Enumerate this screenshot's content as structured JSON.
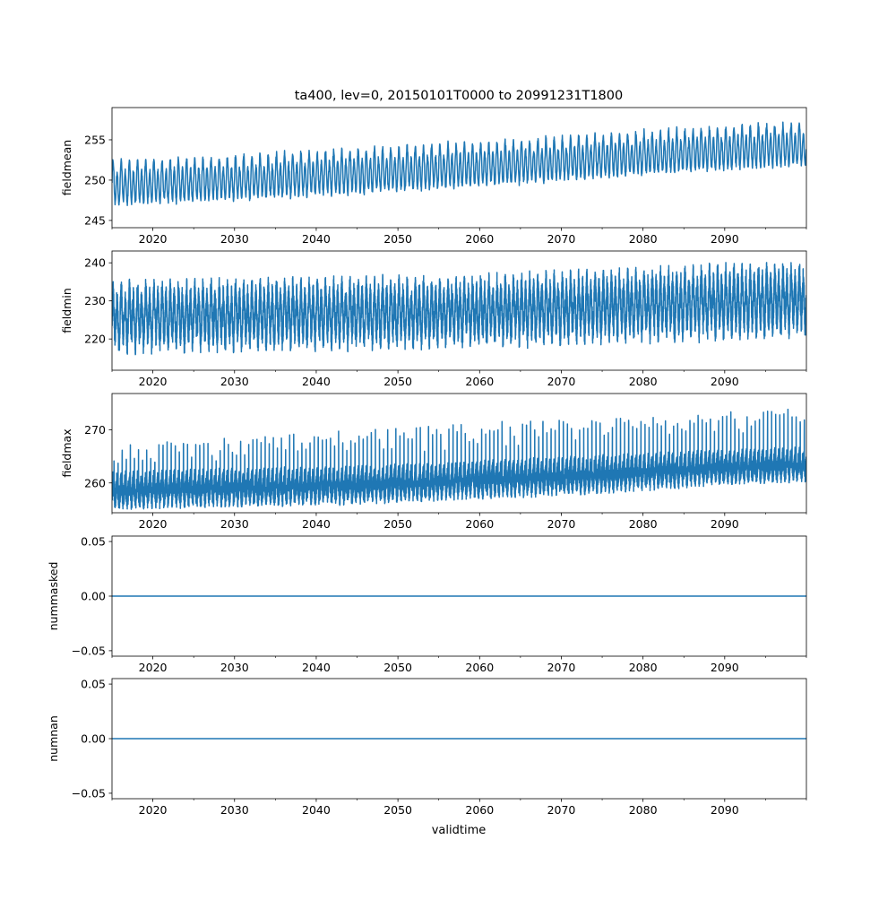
{
  "chart_data": {
    "type": "line",
    "title": "ta400, lev=0, 20150101T0000 to 20991231T1800",
    "xlabel": "validtime",
    "xlim": [
      2015,
      2100
    ],
    "x_ticks": [
      2020,
      2030,
      2040,
      2050,
      2060,
      2070,
      2080,
      2090
    ],
    "x_minor_ticks": [
      2015,
      2025,
      2035,
      2045,
      2055,
      2065,
      2075,
      2085,
      2095,
      2100
    ],
    "color": "#1f77b4",
    "panels": [
      {
        "ylabel": "fieldmean",
        "ylim": [
          244.1,
          259.0
        ],
        "y_ticks": [
          245,
          250,
          255
        ],
        "y_tick_labels": [
          "245",
          "250",
          "255"
        ],
        "kind": "seasonal",
        "envelope_years": [
          2015,
          2030,
          2045,
          2060,
          2075,
          2090,
          2100
        ],
        "low": [
          246.0,
          246.8,
          247.5,
          248.5,
          249.5,
          250.5,
          251.0
        ],
        "high": [
          252.8,
          253.3,
          254.2,
          255.0,
          256.0,
          257.0,
          257.5
        ]
      },
      {
        "ylabel": "fieldmin",
        "ylim": [
          211.8,
          243.1
        ],
        "y_ticks": [
          220,
          230,
          240
        ],
        "y_tick_labels": [
          "220",
          "230",
          "240"
        ],
        "kind": "dense",
        "envelope_years": [
          2015,
          2030,
          2045,
          2060,
          2075,
          2090,
          2100
        ],
        "low": [
          216.0,
          216.5,
          217.0,
          217.5,
          218.5,
          219.5,
          220.0
        ],
        "high": [
          235.5,
          236.0,
          236.5,
          237.0,
          238.5,
          240.0,
          240.5
        ]
      },
      {
        "ylabel": "fieldmax",
        "ylim": [
          254.4,
          276.8
        ],
        "y_ticks": [
          260,
          270
        ],
        "y_tick_labels": [
          "260",
          "270"
        ],
        "kind": "spiky",
        "envelope_years": [
          2015,
          2030,
          2045,
          2060,
          2075,
          2090,
          2100
        ],
        "low": [
          256.5,
          257.0,
          257.5,
          258.5,
          259.5,
          261.0,
          261.5
        ],
        "high": [
          262.5,
          263.0,
          263.5,
          264.5,
          265.5,
          266.5,
          267.0
        ],
        "spike": [
          268.0,
          268.5,
          270.0,
          271.5,
          272.0,
          273.5,
          274.0
        ]
      },
      {
        "ylabel": "nummasked",
        "ylim": [
          -0.055,
          0.055
        ],
        "y_ticks": [
          -0.05,
          0.0,
          0.05
        ],
        "y_tick_labels": [
          "−0.05",
          "0.00",
          "0.05"
        ],
        "kind": "constant",
        "value": 0.0
      },
      {
        "ylabel": "numnan",
        "ylim": [
          -0.055,
          0.055
        ],
        "y_ticks": [
          -0.05,
          0.0,
          0.05
        ],
        "y_tick_labels": [
          "−0.05",
          "0.00",
          "0.05"
        ],
        "kind": "constant",
        "value": 0.0
      }
    ]
  }
}
